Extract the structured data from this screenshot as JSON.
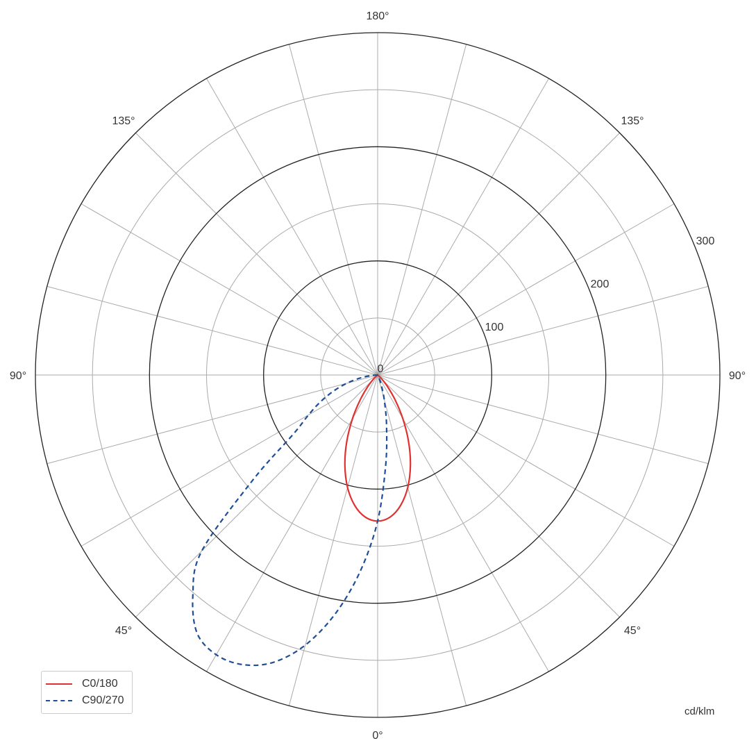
{
  "chart_data": {
    "type": "polar-line",
    "unit": "cd/klm",
    "r_range": [
      0,
      300
    ],
    "r_ticks": [
      "0",
      "100",
      "200",
      "300"
    ],
    "minor_rings": [
      50,
      150,
      250
    ],
    "spoke_step_deg": 15,
    "angle_labels": {
      "top": "180°",
      "upper_left": "135°",
      "upper_right": "135°",
      "left": "90°",
      "right": "90°",
      "lower_left": "45°",
      "lower_right": "45°",
      "bottom": "0°"
    },
    "legend_position": "bottom-left",
    "series": [
      {
        "name": "C0/180",
        "color": "#e03030",
        "style": "solid",
        "angles": [
          -90,
          -80,
          -70,
          -60,
          -55,
          -50,
          -45,
          -40,
          -35,
          -30,
          -25,
          -20,
          -15,
          -10,
          -5,
          0,
          5,
          10,
          15,
          20,
          25,
          30,
          35,
          40,
          45,
          50,
          55,
          60,
          70,
          80,
          90
        ],
        "values": [
          0,
          0,
          0,
          0,
          0,
          2,
          6,
          14,
          27,
          44,
          64,
          84,
          102,
          116,
          125,
          128,
          125,
          116,
          102,
          84,
          64,
          44,
          27,
          14,
          6,
          2,
          0,
          0,
          0,
          0,
          0
        ]
      },
      {
        "name": "C90/270",
        "color": "#1f4e96",
        "style": "dashed",
        "angles": [
          -90,
          -85,
          -80,
          -75,
          -70,
          -65,
          -60,
          -55,
          -50,
          -45,
          -40,
          -35,
          -30,
          -25,
          -20,
          -15,
          -10,
          -5,
          0,
          5,
          10,
          15,
          20,
          25,
          30,
          40,
          50,
          60,
          70,
          80,
          90
        ],
        "values": [
          0,
          6,
          16,
          28,
          41,
          55,
          70,
          90,
          142,
          218,
          252,
          276,
          283,
          280,
          268,
          245,
          212,
          172,
          128,
          80,
          45,
          22,
          9,
          3,
          0,
          0,
          0,
          0,
          0,
          0,
          0
        ]
      }
    ]
  }
}
